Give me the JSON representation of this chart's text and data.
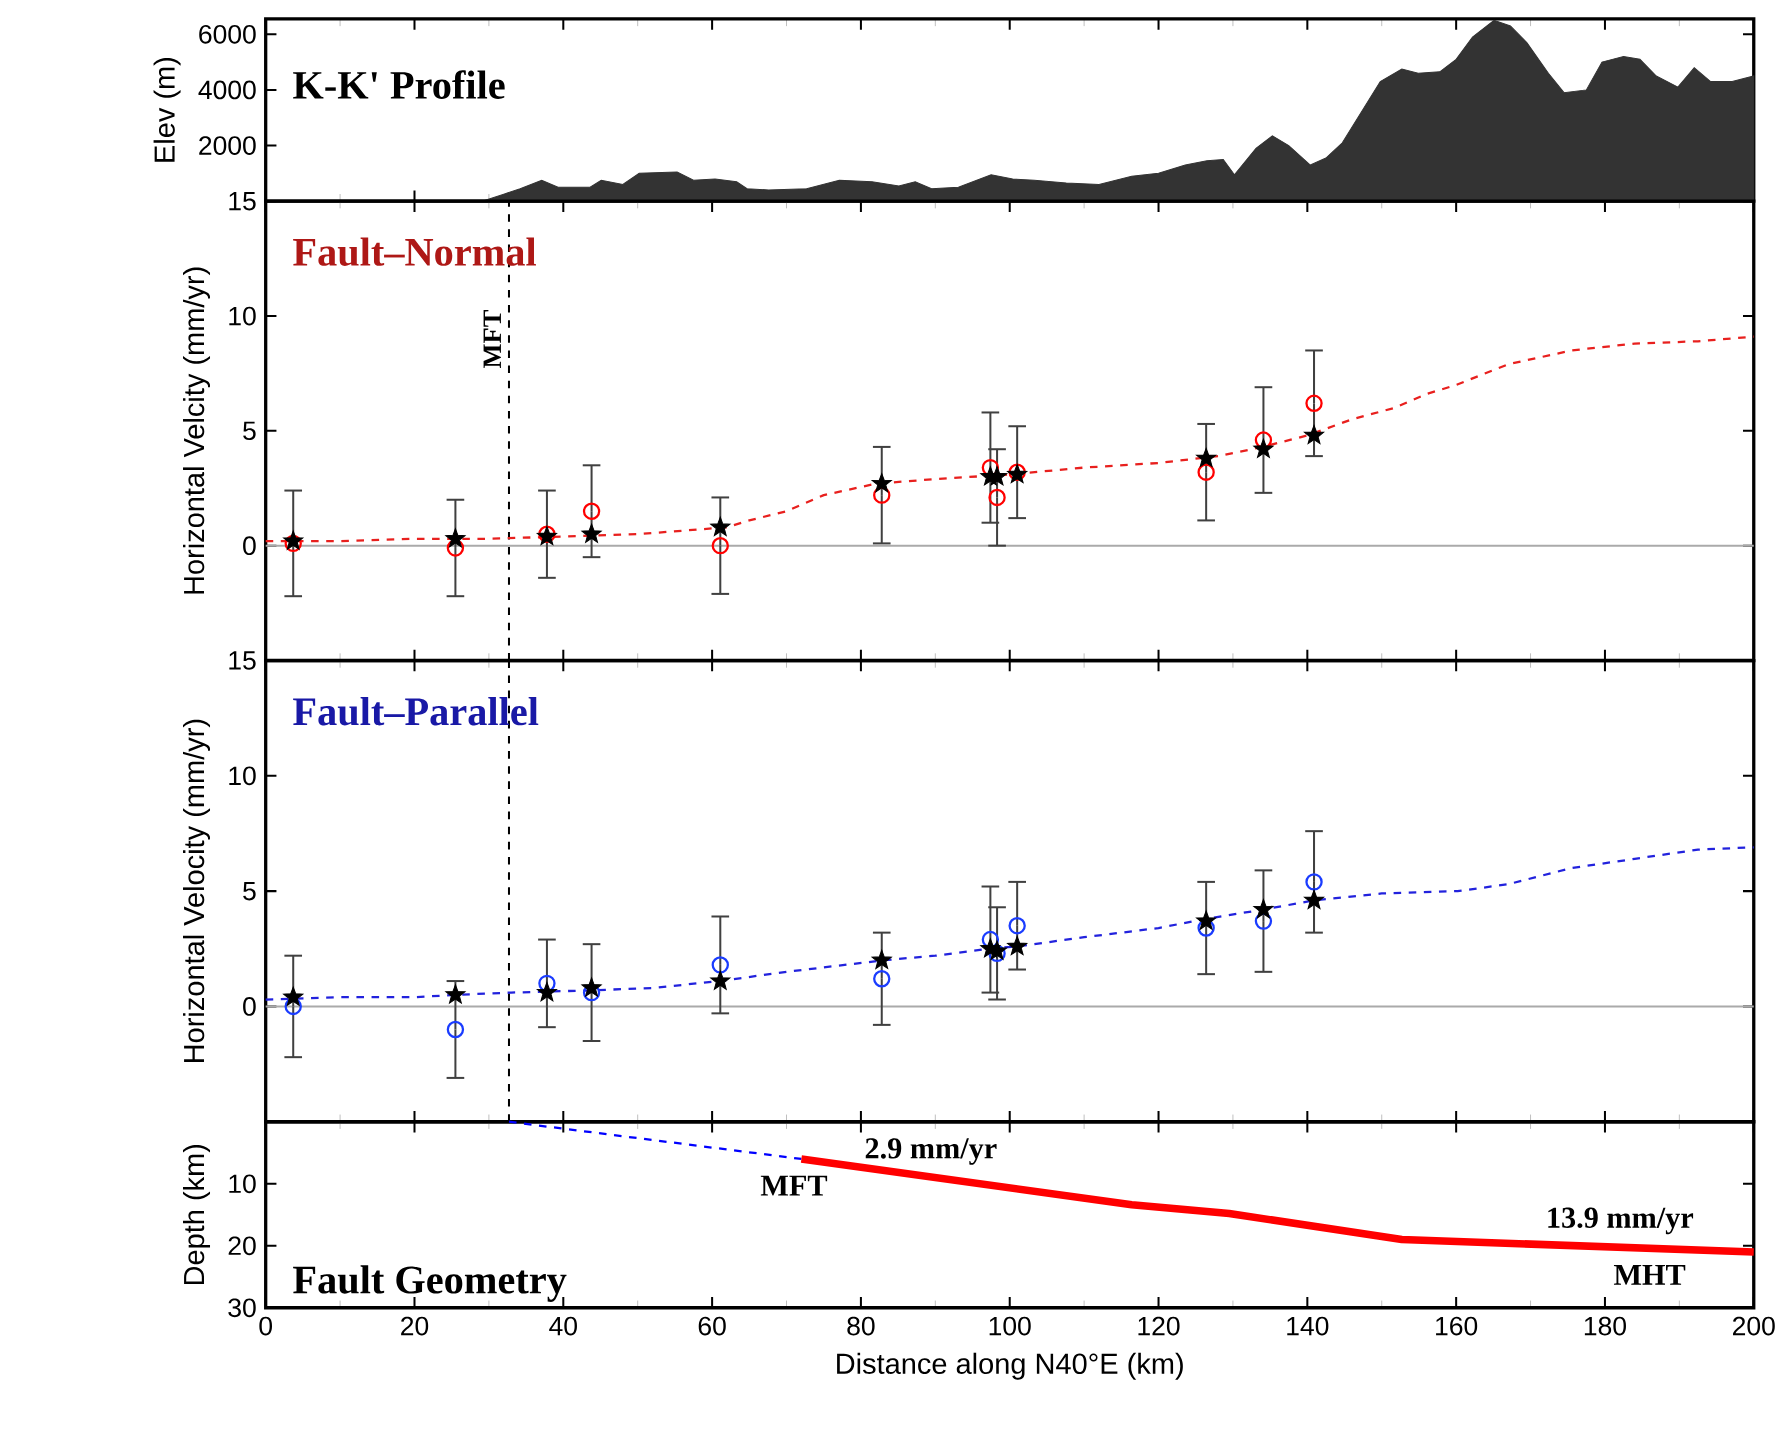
{
  "chart_data": [
    {
      "type": "area",
      "title": "K-K' Profile",
      "ylabel": "Elev (m)",
      "color": "#333333",
      "x": [
        0,
        29.1,
        32,
        34.2,
        37.1,
        39.3,
        43.6,
        45.1,
        48,
        50.2,
        55.3,
        57.5,
        60.4,
        63.3,
        64.7,
        67.6,
        72.7,
        77.1,
        81.5,
        85.1,
        87.3,
        89.5,
        93.1,
        97.5,
        100.4,
        103.3,
        107.6,
        112,
        116.4,
        120,
        123.6,
        126.5,
        128.7,
        130.2,
        133.1,
        135.3,
        137.5,
        140.4,
        142.5,
        144.7,
        149.8,
        152.7,
        154.9,
        157.8,
        160,
        162.2,
        165.1,
        167.3,
        169.5,
        172.4,
        174.5,
        177.5,
        179.6,
        182.5,
        184.7,
        186.9,
        189.8,
        192,
        194.2,
        197.1,
        200
      ],
      "values": [
        0,
        0,
        250,
        450,
        750,
        500,
        500,
        750,
        600,
        1000,
        1050,
        750,
        800,
        700,
        450,
        400,
        450,
        750,
        700,
        550,
        700,
        450,
        500,
        950,
        800,
        750,
        650,
        600,
        900,
        1000,
        1300,
        1450,
        1500,
        950,
        1900,
        2350,
        2000,
        1300,
        1550,
        2100,
        4300,
        4750,
        4600,
        4650,
        5100,
        5900,
        6500,
        6300,
        5700,
        4600,
        3900,
        4000,
        5000,
        5200,
        5100,
        4500,
        4100,
        4800,
        4300,
        4300,
        4500
      ],
      "xlim": [
        0,
        200
      ],
      "ylim": [
        0,
        6550
      ],
      "xticks": [
        0,
        20,
        40,
        60,
        80,
        100,
        120,
        140,
        160,
        180,
        200
      ],
      "yticks": [
        2000,
        4000,
        6000
      ],
      "tick_labels": "y"
    },
    {
      "type": "scatter",
      "title": "Fault–Normal",
      "ylabel": "Horizontal Velcity (mm/yr)",
      "xlim": [
        0,
        200
      ],
      "ylim": [
        -5,
        15
      ],
      "xticks": [
        0,
        20,
        40,
        60,
        80,
        100,
        120,
        140,
        160,
        180,
        200
      ],
      "yticks": [
        0,
        5,
        10,
        15
      ],
      "tick_labels": "y",
      "ref_lines": [
        {
          "axis": "x",
          "value": 32.7,
          "label": "MFT",
          "color": "#000000",
          "line_style": "dashed"
        },
        {
          "axis": "y",
          "value": 0,
          "color": "#aaaaaa",
          "line_style": "solid"
        }
      ],
      "series": [
        {
          "type": "line",
          "color": "#e8201e",
          "line_style": "dashed",
          "x": [
            0,
            10,
            20,
            30,
            40,
            50,
            58,
            62,
            65,
            70,
            75,
            82,
            90,
            100,
            110,
            120,
            128,
            134,
            140,
            146,
            151.7,
            156,
            160,
            167,
            175.5,
            184,
            192.5,
            200
          ],
          "values": [
            0.2,
            0.2,
            0.3,
            0.3,
            0.4,
            0.5,
            0.7,
            0.8,
            1.1,
            1.5,
            2.2,
            2.7,
            2.9,
            3.1,
            3.4,
            3.6,
            3.9,
            4.3,
            4.8,
            5.5,
            6.0,
            6.6,
            7.0,
            7.9,
            8.5,
            8.8,
            8.9,
            9.1
          ]
        },
        {
          "type": "scatter",
          "marker": "circle",
          "color": "#ff0000",
          "x": [
            3.7,
            25.5,
            37.8,
            43.8,
            61.1,
            82.8,
            97.4,
            98.3,
            101.0,
            126.4,
            134.1,
            140.9
          ],
          "values": [
            0.1,
            -0.1,
            0.5,
            1.5,
            0.0,
            2.2,
            3.4,
            2.1,
            3.2,
            3.2,
            4.6,
            6.2
          ],
          "errors": [
            2.3,
            2.1,
            1.9,
            2.0,
            2.1,
            2.1,
            2.4,
            2.1,
            2.0,
            2.1,
            2.3,
            2.3
          ]
        },
        {
          "type": "scatter",
          "marker": "star",
          "color": "#000000",
          "x": [
            3.7,
            25.5,
            37.8,
            43.8,
            61.1,
            82.8,
            97.4,
            98.3,
            101.0,
            126.4,
            134.1,
            140.9
          ],
          "values": [
            0.2,
            0.3,
            0.4,
            0.5,
            0.8,
            2.7,
            3.0,
            3.0,
            3.1,
            3.8,
            4.2,
            4.8
          ]
        }
      ]
    },
    {
      "type": "scatter",
      "title": "Fault–Parallel",
      "ylabel": "Horizontal Velocity (mm/yr)",
      "xlim": [
        0,
        200
      ],
      "ylim": [
        -5,
        15
      ],
      "xticks": [
        0,
        20,
        40,
        60,
        80,
        100,
        120,
        140,
        160,
        180,
        200
      ],
      "yticks": [
        0,
        5,
        10,
        15
      ],
      "tick_labels": "y",
      "ref_lines": [
        {
          "axis": "x",
          "value": 32.7,
          "color": "#000000",
          "line_style": "dashed"
        },
        {
          "axis": "y",
          "value": 0,
          "color": "#aaaaaa",
          "line_style": "solid"
        }
      ],
      "series": [
        {
          "type": "line",
          "color": "#2222dd",
          "line_style": "dashed",
          "x": [
            0,
            10,
            20,
            25.5,
            33,
            44,
            52,
            61,
            70,
            83,
            90,
            97,
            101,
            110,
            120,
            126.4,
            134.1,
            140.9,
            150,
            160.2,
            167,
            175.5,
            184,
            192.5,
            200
          ],
          "values": [
            0.3,
            0.4,
            0.4,
            0.5,
            0.6,
            0.7,
            0.8,
            1.1,
            1.5,
            2.0,
            2.2,
            2.5,
            2.6,
            3.0,
            3.4,
            3.8,
            4.2,
            4.6,
            4.9,
            5.0,
            5.3,
            6.0,
            6.4,
            6.8,
            6.9
          ]
        },
        {
          "type": "scatter",
          "marker": "circle",
          "color": "#1a3cff",
          "x": [
            3.7,
            25.5,
            37.8,
            43.8,
            61.1,
            82.8,
            97.4,
            98.3,
            101.0,
            126.4,
            134.1,
            140.9
          ],
          "values": [
            0.0,
            -1.0,
            1.0,
            0.6,
            1.8,
            1.2,
            2.9,
            2.3,
            3.5,
            3.4,
            3.7,
            5.4
          ],
          "errors": [
            2.2,
            2.1,
            1.9,
            2.1,
            2.1,
            2.0,
            2.3,
            2.0,
            1.9,
            2.0,
            2.2,
            2.2
          ]
        },
        {
          "type": "scatter",
          "marker": "star",
          "color": "#000000",
          "x": [
            3.7,
            25.5,
            37.8,
            43.8,
            61.1,
            82.8,
            97.4,
            98.3,
            101.0,
            126.4,
            134.1,
            140.9
          ],
          "values": [
            0.4,
            0.5,
            0.6,
            0.8,
            1.1,
            2.0,
            2.5,
            2.4,
            2.6,
            3.7,
            4.2,
            4.6
          ]
        }
      ]
    },
    {
      "type": "line",
      "title": "Fault Geometry",
      "xlabel": "Distance along N40°E (km)",
      "ylabel": "Depth (km)",
      "xlim": [
        0,
        200
      ],
      "ylim": [
        30,
        0
      ],
      "xticks": [
        0,
        20,
        40,
        60,
        80,
        100,
        120,
        140,
        160,
        180,
        200
      ],
      "yticks": [
        10,
        20,
        30
      ],
      "annotations": [
        "2.9 mm/yr",
        "MFT",
        "13.9 mm/yr",
        "MHT"
      ],
      "series": [
        {
          "color": "#0000ff",
          "line_style": "dashed",
          "x": [
            32.7,
            72
          ],
          "values": [
            0,
            6.0
          ]
        },
        {
          "color": "#ff0000",
          "line_style": "solid",
          "x": [
            72,
            116.4,
            129.5,
            152.7,
            200
          ],
          "values": [
            6.0,
            13.4,
            14.8,
            19.0,
            21.0
          ]
        }
      ]
    }
  ]
}
